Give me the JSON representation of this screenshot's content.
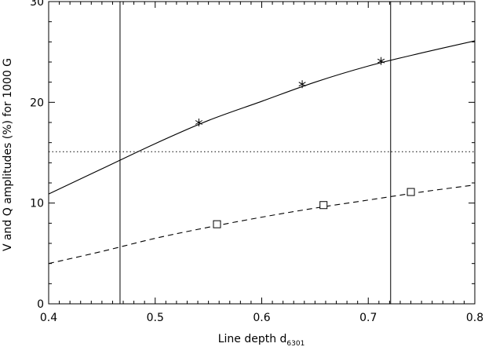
{
  "chart_data": {
    "type": "line",
    "xlabel": "Line depth d",
    "xlabel_subscript": "6301",
    "ylabel": "V and Q amplitudes (%) for 1000 G",
    "xlim": [
      0.4,
      0.8
    ],
    "ylim": [
      0,
      30
    ],
    "xticks": [
      0.4,
      0.5,
      0.6,
      0.7,
      0.8
    ],
    "xtick_labels": [
      "0.4",
      "0.5",
      "0.6",
      "0.7",
      "0.8"
    ],
    "yticks": [
      0,
      10,
      20,
      30
    ],
    "ytick_labels": [
      "0",
      "10",
      "20",
      "30"
    ],
    "grid": false,
    "series": [
      {
        "style": "solid",
        "x": [
          0.4,
          0.45,
          0.5,
          0.55,
          0.6,
          0.65,
          0.7,
          0.75,
          0.8
        ],
        "y": [
          10.9,
          13.4,
          15.9,
          18.2,
          20.1,
          22.0,
          23.6,
          24.9,
          26.1
        ]
      },
      {
        "style": "dashed",
        "x": [
          0.4,
          0.45,
          0.5,
          0.55,
          0.6,
          0.65,
          0.7,
          0.75,
          0.8
        ],
        "y": [
          4.0,
          5.2,
          6.5,
          7.6,
          8.6,
          9.5,
          10.3,
          11.1,
          11.8
        ]
      }
    ],
    "markers": [
      {
        "symbol": "asterisk",
        "x": [
          0.541,
          0.638,
          0.712
        ],
        "y": [
          18.0,
          21.8,
          24.1
        ]
      },
      {
        "symbol": "square",
        "x": [
          0.558,
          0.658,
          0.74
        ],
        "y": [
          7.9,
          9.8,
          11.1
        ]
      }
    ],
    "hlines": [
      {
        "y": 15.1,
        "style": "dotted"
      }
    ],
    "vlines": [
      {
        "x": 0.467,
        "style": "solid"
      },
      {
        "x": 0.721,
        "style": "solid"
      }
    ]
  }
}
